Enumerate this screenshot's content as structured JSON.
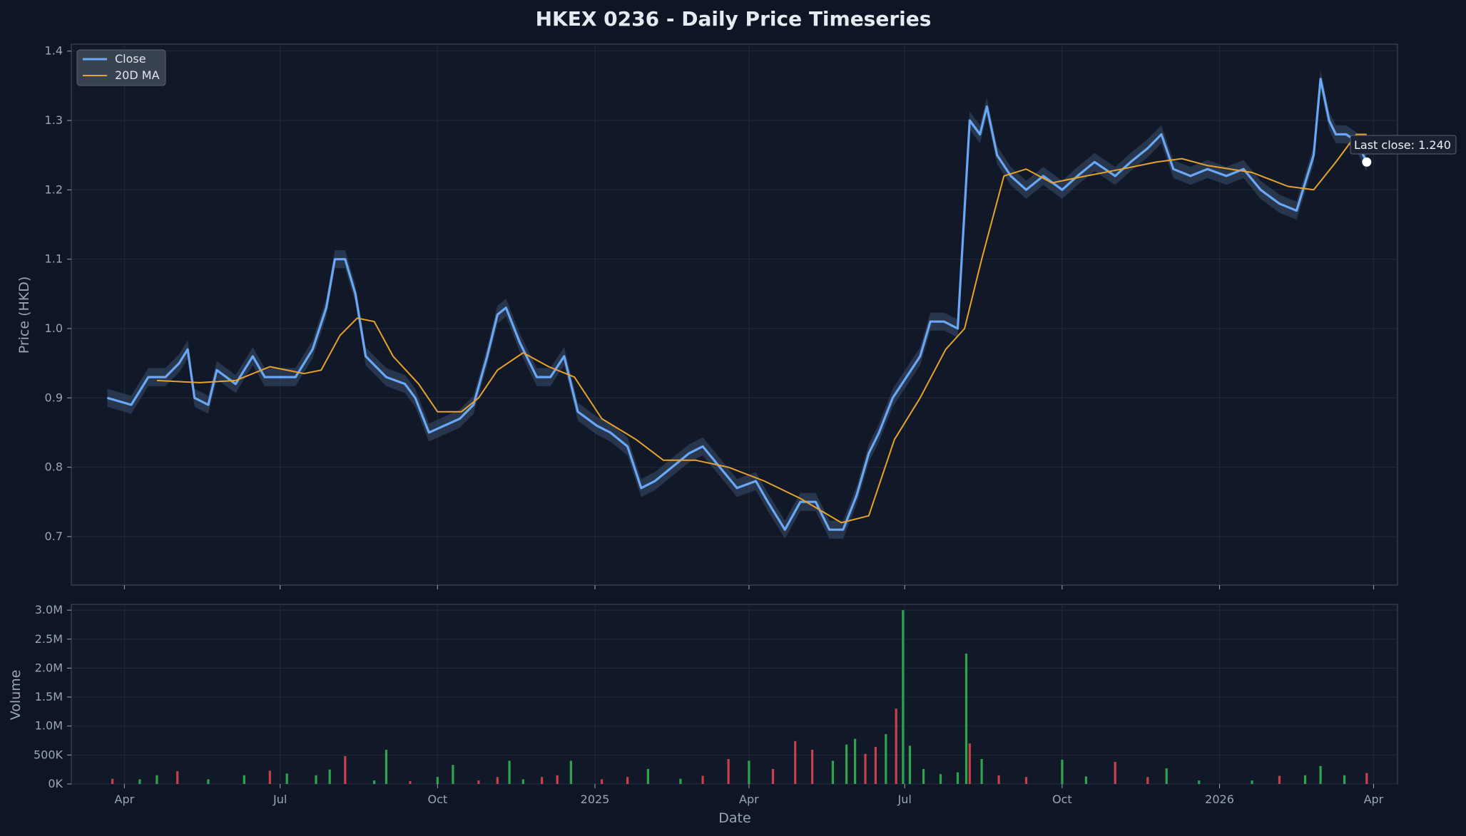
{
  "chart_data": {
    "type": "line",
    "title": "HKEX 0236 - Daily Price Timeseries",
    "xlabel": "Date",
    "x_range": [
      "2024-03-01",
      "2026-04-15"
    ],
    "x_ticks": [
      {
        "date": "2024-04-01",
        "label": "Apr"
      },
      {
        "date": "2024-07-01",
        "label": "Jul"
      },
      {
        "date": "2024-10-01",
        "label": "Oct"
      },
      {
        "date": "2025-01-01",
        "label": "2025"
      },
      {
        "date": "2025-04-01",
        "label": "Apr"
      },
      {
        "date": "2025-07-01",
        "label": "Jul"
      },
      {
        "date": "2025-10-01",
        "label": "Oct"
      },
      {
        "date": "2026-01-01",
        "label": "2026"
      },
      {
        "date": "2026-04-01",
        "label": "Apr"
      }
    ],
    "price_panel": {
      "ylabel": "Price (HKD)",
      "ylim": [
        0.63,
        1.41
      ],
      "y_ticks": [
        0.7,
        0.8,
        0.9,
        1.0,
        1.1,
        1.2,
        1.3,
        1.4
      ],
      "y_tick_labels": [
        "0.7",
        "0.8",
        "0.9",
        "1.0",
        "1.1",
        "1.2",
        "1.3",
        "1.4"
      ],
      "grid": true,
      "legend_placement": "top-left",
      "colors": {
        "close": "#6aa8f5",
        "ma": "#e8a229",
        "range_band": "#3a4d6b"
      },
      "series": [
        {
          "name": "Close",
          "points": [
            [
              "2024-03-22",
              0.9
            ],
            [
              "2024-04-05",
              0.89
            ],
            [
              "2024-04-15",
              0.93
            ],
            [
              "2024-04-25",
              0.93
            ],
            [
              "2024-05-03",
              0.95
            ],
            [
              "2024-05-08",
              0.97
            ],
            [
              "2024-05-12",
              0.9
            ],
            [
              "2024-05-20",
              0.89
            ],
            [
              "2024-05-25",
              0.94
            ],
            [
              "2024-06-05",
              0.92
            ],
            [
              "2024-06-15",
              0.96
            ],
            [
              "2024-06-22",
              0.93
            ],
            [
              "2024-07-01",
              0.93
            ],
            [
              "2024-07-10",
              0.93
            ],
            [
              "2024-07-20",
              0.97
            ],
            [
              "2024-07-28",
              1.03
            ],
            [
              "2024-08-02",
              1.1
            ],
            [
              "2024-08-08",
              1.1
            ],
            [
              "2024-08-14",
              1.05
            ],
            [
              "2024-08-20",
              0.96
            ],
            [
              "2024-09-01",
              0.93
            ],
            [
              "2024-09-12",
              0.92
            ],
            [
              "2024-09-18",
              0.9
            ],
            [
              "2024-09-26",
              0.85
            ],
            [
              "2024-10-05",
              0.86
            ],
            [
              "2024-10-14",
              0.87
            ],
            [
              "2024-10-22",
              0.89
            ],
            [
              "2024-10-30",
              0.96
            ],
            [
              "2024-11-05",
              1.02
            ],
            [
              "2024-11-10",
              1.03
            ],
            [
              "2024-11-18",
              0.98
            ],
            [
              "2024-11-28",
              0.93
            ],
            [
              "2024-12-06",
              0.93
            ],
            [
              "2024-12-14",
              0.96
            ],
            [
              "2024-12-22",
              0.88
            ],
            [
              "2025-01-02",
              0.86
            ],
            [
              "2025-01-10",
              0.85
            ],
            [
              "2025-01-20",
              0.83
            ],
            [
              "2025-01-28",
              0.77
            ],
            [
              "2025-02-05",
              0.78
            ],
            [
              "2025-02-15",
              0.8
            ],
            [
              "2025-02-25",
              0.82
            ],
            [
              "2025-03-05",
              0.83
            ],
            [
              "2025-03-15",
              0.8
            ],
            [
              "2025-03-25",
              0.77
            ],
            [
              "2025-04-05",
              0.78
            ],
            [
              "2025-04-12",
              0.75
            ],
            [
              "2025-04-22",
              0.71
            ],
            [
              "2025-05-01",
              0.75
            ],
            [
              "2025-05-10",
              0.75
            ],
            [
              "2025-05-18",
              0.71
            ],
            [
              "2025-05-26",
              0.71
            ],
            [
              "2025-06-03",
              0.76
            ],
            [
              "2025-06-10",
              0.82
            ],
            [
              "2025-06-16",
              0.85
            ],
            [
              "2025-06-24",
              0.9
            ],
            [
              "2025-07-02",
              0.93
            ],
            [
              "2025-07-10",
              0.96
            ],
            [
              "2025-07-16",
              1.01
            ],
            [
              "2025-07-24",
              1.01
            ],
            [
              "2025-08-01",
              1.0
            ],
            [
              "2025-08-08",
              1.3
            ],
            [
              "2025-08-14",
              1.28
            ],
            [
              "2025-08-18",
              1.32
            ],
            [
              "2025-08-24",
              1.25
            ],
            [
              "2025-09-01",
              1.22
            ],
            [
              "2025-09-10",
              1.2
            ],
            [
              "2025-09-20",
              1.22
            ],
            [
              "2025-10-01",
              1.2
            ],
            [
              "2025-10-10",
              1.22
            ],
            [
              "2025-10-20",
              1.24
            ],
            [
              "2025-11-01",
              1.22
            ],
            [
              "2025-11-10",
              1.24
            ],
            [
              "2025-11-20",
              1.26
            ],
            [
              "2025-11-28",
              1.28
            ],
            [
              "2025-12-05",
              1.23
            ],
            [
              "2025-12-15",
              1.22
            ],
            [
              "2025-12-25",
              1.23
            ],
            [
              "2026-01-05",
              1.22
            ],
            [
              "2026-01-15",
              1.23
            ],
            [
              "2026-01-25",
              1.2
            ],
            [
              "2026-02-05",
              1.18
            ],
            [
              "2026-02-15",
              1.17
            ],
            [
              "2026-02-25",
              1.25
            ],
            [
              "2026-03-01",
              1.36
            ],
            [
              "2026-03-06",
              1.3
            ],
            [
              "2026-03-10",
              1.28
            ],
            [
              "2026-03-16",
              1.28
            ],
            [
              "2026-03-22",
              1.27
            ],
            [
              "2026-03-28",
              1.24
            ]
          ]
        },
        {
          "name": "20D MA",
          "points": [
            [
              "2024-04-20",
              0.925
            ],
            [
              "2024-05-15",
              0.922
            ],
            [
              "2024-06-05",
              0.925
            ],
            [
              "2024-06-25",
              0.945
            ],
            [
              "2024-07-15",
              0.935
            ],
            [
              "2024-07-25",
              0.94
            ],
            [
              "2024-08-05",
              0.99
            ],
            [
              "2024-08-15",
              1.015
            ],
            [
              "2024-08-25",
              1.01
            ],
            [
              "2024-09-05",
              0.96
            ],
            [
              "2024-09-20",
              0.92
            ],
            [
              "2024-10-01",
              0.88
            ],
            [
              "2024-10-15",
              0.88
            ],
            [
              "2024-10-25",
              0.9
            ],
            [
              "2024-11-05",
              0.94
            ],
            [
              "2024-11-20",
              0.965
            ],
            [
              "2024-12-05",
              0.945
            ],
            [
              "2024-12-20",
              0.93
            ],
            [
              "2025-01-05",
              0.87
            ],
            [
              "2025-01-25",
              0.84
            ],
            [
              "2025-02-10",
              0.81
            ],
            [
              "2025-03-01",
              0.81
            ],
            [
              "2025-03-20",
              0.8
            ],
            [
              "2025-04-10",
              0.78
            ],
            [
              "2025-05-01",
              0.755
            ],
            [
              "2025-05-25",
              0.72
            ],
            [
              "2025-06-10",
              0.73
            ],
            [
              "2025-06-25",
              0.84
            ],
            [
              "2025-07-10",
              0.9
            ],
            [
              "2025-07-25",
              0.97
            ],
            [
              "2025-08-05",
              1.0
            ],
            [
              "2025-08-15",
              1.1
            ],
            [
              "2025-08-28",
              1.22
            ],
            [
              "2025-09-10",
              1.23
            ],
            [
              "2025-09-25",
              1.21
            ],
            [
              "2025-10-15",
              1.22
            ],
            [
              "2025-11-05",
              1.23
            ],
            [
              "2025-11-25",
              1.24
            ],
            [
              "2025-12-10",
              1.245
            ],
            [
              "2025-12-25",
              1.235
            ],
            [
              "2026-01-20",
              1.225
            ],
            [
              "2026-02-10",
              1.205
            ],
            [
              "2026-02-25",
              1.2
            ],
            [
              "2026-03-10",
              1.24
            ],
            [
              "2026-03-22",
              1.28
            ],
            [
              "2026-03-28",
              1.28
            ]
          ]
        }
      ],
      "annotation": {
        "text": "Last close: 1.240",
        "date": "2026-03-28",
        "value": 1.24
      }
    },
    "volume_panel": {
      "ylabel": "Volume",
      "ylim": [
        0,
        3100000
      ],
      "y_ticks": [
        0,
        500000,
        1000000,
        1500000,
        2000000,
        2500000,
        3000000
      ],
      "y_tick_labels": [
        "0K",
        "500K",
        "1.0M",
        "1.5M",
        "2.0M",
        "2.5M",
        "3.0M"
      ],
      "colors": {
        "up": "#2ea44f",
        "down": "#c9404a"
      },
      "bars": [
        [
          "2024-03-25",
          90000,
          "down"
        ],
        [
          "2024-04-10",
          80000,
          "up"
        ],
        [
          "2024-04-20",
          150000,
          "up"
        ],
        [
          "2024-05-02",
          220000,
          "down"
        ],
        [
          "2024-05-20",
          80000,
          "up"
        ],
        [
          "2024-06-10",
          150000,
          "up"
        ],
        [
          "2024-06-25",
          230000,
          "down"
        ],
        [
          "2024-07-05",
          180000,
          "up"
        ],
        [
          "2024-07-22",
          150000,
          "up"
        ],
        [
          "2024-07-30",
          250000,
          "up"
        ],
        [
          "2024-08-08",
          480000,
          "down"
        ],
        [
          "2024-08-25",
          60000,
          "up"
        ],
        [
          "2024-09-01",
          590000,
          "up"
        ],
        [
          "2024-09-15",
          50000,
          "down"
        ],
        [
          "2024-10-01",
          120000,
          "up"
        ],
        [
          "2024-10-10",
          330000,
          "up"
        ],
        [
          "2024-10-25",
          60000,
          "down"
        ],
        [
          "2024-11-05",
          120000,
          "down"
        ],
        [
          "2024-11-12",
          400000,
          "up"
        ],
        [
          "2024-11-20",
          80000,
          "up"
        ],
        [
          "2024-12-01",
          120000,
          "down"
        ],
        [
          "2024-12-10",
          150000,
          "down"
        ],
        [
          "2024-12-18",
          400000,
          "up"
        ],
        [
          "2025-01-05",
          80000,
          "down"
        ],
        [
          "2025-01-20",
          120000,
          "down"
        ],
        [
          "2025-02-01",
          260000,
          "up"
        ],
        [
          "2025-02-20",
          90000,
          "up"
        ],
        [
          "2025-03-05",
          140000,
          "down"
        ],
        [
          "2025-03-20",
          430000,
          "down"
        ],
        [
          "2025-04-01",
          400000,
          "up"
        ],
        [
          "2025-04-15",
          260000,
          "down"
        ],
        [
          "2025-04-28",
          740000,
          "down"
        ],
        [
          "2025-05-08",
          590000,
          "down"
        ],
        [
          "2025-05-20",
          400000,
          "up"
        ],
        [
          "2025-05-28",
          680000,
          "up"
        ],
        [
          "2025-06-02",
          780000,
          "up"
        ],
        [
          "2025-06-08",
          520000,
          "down"
        ],
        [
          "2025-06-14",
          640000,
          "down"
        ],
        [
          "2025-06-20",
          860000,
          "up"
        ],
        [
          "2025-06-26",
          1300000,
          "down"
        ],
        [
          "2025-06-30",
          3000000,
          "up"
        ],
        [
          "2025-07-04",
          660000,
          "up"
        ],
        [
          "2025-07-12",
          260000,
          "up"
        ],
        [
          "2025-07-22",
          170000,
          "up"
        ],
        [
          "2025-08-01",
          200000,
          "up"
        ],
        [
          "2025-08-06",
          2250000,
          "up"
        ],
        [
          "2025-08-08",
          700000,
          "down"
        ],
        [
          "2025-08-15",
          430000,
          "up"
        ],
        [
          "2025-08-25",
          150000,
          "down"
        ],
        [
          "2025-09-10",
          120000,
          "down"
        ],
        [
          "2025-10-01",
          420000,
          "up"
        ],
        [
          "2025-10-15",
          130000,
          "up"
        ],
        [
          "2025-11-01",
          380000,
          "down"
        ],
        [
          "2025-11-20",
          120000,
          "down"
        ],
        [
          "2025-12-01",
          270000,
          "up"
        ],
        [
          "2025-12-20",
          60000,
          "up"
        ],
        [
          "2026-01-20",
          60000,
          "up"
        ],
        [
          "2026-02-05",
          140000,
          "down"
        ],
        [
          "2026-02-20",
          150000,
          "up"
        ],
        [
          "2026-03-01",
          310000,
          "up"
        ],
        [
          "2026-03-15",
          150000,
          "up"
        ],
        [
          "2026-03-28",
          190000,
          "down"
        ]
      ]
    }
  }
}
